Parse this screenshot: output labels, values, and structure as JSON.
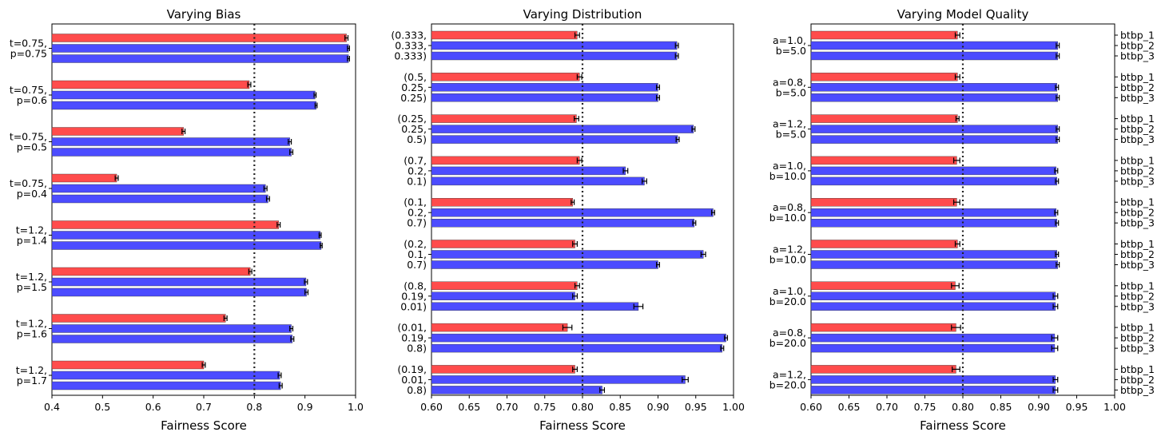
{
  "chart_data": [
    {
      "type": "bar",
      "orientation": "horizontal",
      "title": "Varying Bias",
      "xlabel": "Fairness Score",
      "ylabel": "",
      "xlim": [
        0.4,
        1.0
      ],
      "xticks": [
        "0.4",
        "0.5",
        "0.6",
        "0.7",
        "0.8",
        "0.9",
        "1.0"
      ],
      "reference_line": 0.8,
      "group_labels": [
        [
          "t=0.75,",
          "p=0.75"
        ],
        [
          "t=0.75,",
          "p=0.6"
        ],
        [
          "t=0.75,",
          "p=0.5"
        ],
        [
          "t=0.75,",
          "p=0.4"
        ],
        [
          "t=1.2,",
          "p=1.4"
        ],
        [
          "t=1.2,",
          "p=1.5"
        ],
        [
          "t=1.2,",
          "p=1.6"
        ],
        [
          "t=1.2,",
          "p=1.7"
        ]
      ],
      "right_tick_labels": [],
      "groups": [
        {
          "values": [
            0.982,
            0.986,
            0.986
          ],
          "errors": [
            0.003,
            0.002,
            0.002
          ]
        },
        {
          "values": [
            0.79,
            0.92,
            0.922
          ],
          "errors": [
            0.003,
            0.002,
            0.002
          ]
        },
        {
          "values": [
            0.66,
            0.87,
            0.873
          ],
          "errors": [
            0.003,
            0.003,
            0.003
          ]
        },
        {
          "values": [
            0.528,
            0.822,
            0.827
          ],
          "errors": [
            0.003,
            0.003,
            0.003
          ]
        },
        {
          "values": [
            0.848,
            0.93,
            0.932
          ],
          "errors": [
            0.003,
            0.002,
            0.002
          ]
        },
        {
          "values": [
            0.792,
            0.902,
            0.903
          ],
          "errors": [
            0.003,
            0.003,
            0.003
          ]
        },
        {
          "values": [
            0.743,
            0.873,
            0.875
          ],
          "errors": [
            0.003,
            0.003,
            0.003
          ]
        },
        {
          "values": [
            0.7,
            0.85,
            0.852
          ],
          "errors": [
            0.003,
            0.003,
            0.003
          ]
        }
      ]
    },
    {
      "type": "bar",
      "orientation": "horizontal",
      "title": "Varying Distribution",
      "xlabel": "Fairness Score",
      "ylabel": "",
      "xlim": [
        0.6,
        1.0
      ],
      "xticks": [
        "0.60",
        "0.65",
        "0.70",
        "0.75",
        "0.80",
        "0.85",
        "0.90",
        "0.95",
        "1.00"
      ],
      "reference_line": 0.8,
      "group_labels": [
        [
          "(0.333,",
          "0.333,",
          "0.333)"
        ],
        [
          "(0.5,",
          "0.25,",
          "0.25)"
        ],
        [
          "(0.25,",
          "0.25,",
          "0.5)"
        ],
        [
          "(0.7,",
          "0.2,",
          "0.1)"
        ],
        [
          "(0.1,",
          "0.2,",
          "0.7)"
        ],
        [
          "(0.2,",
          "0.1,",
          "0.7)"
        ],
        [
          "(0.8,",
          "0.19,",
          "0.01)"
        ],
        [
          "(0.01,",
          "0.19,",
          "0.8)"
        ],
        [
          "(0.19,",
          "0.01,",
          "0.8)"
        ]
      ],
      "right_tick_labels": [],
      "groups": [
        {
          "values": [
            0.793,
            0.925,
            0.925
          ],
          "errors": [
            0.003,
            0.002,
            0.002
          ]
        },
        {
          "values": [
            0.796,
            0.9,
            0.9
          ],
          "errors": [
            0.003,
            0.002,
            0.002
          ]
        },
        {
          "values": [
            0.792,
            0.947,
            0.926
          ],
          "errors": [
            0.003,
            0.002,
            0.002
          ]
        },
        {
          "values": [
            0.796,
            0.857,
            0.882
          ],
          "errors": [
            0.003,
            0.003,
            0.003
          ]
        },
        {
          "values": [
            0.787,
            0.973,
            0.948
          ],
          "errors": [
            0.002,
            0.002,
            0.002
          ]
        },
        {
          "values": [
            0.79,
            0.96,
            0.9
          ],
          "errors": [
            0.003,
            0.003,
            0.002
          ]
        },
        {
          "values": [
            0.793,
            0.79,
            0.874
          ],
          "errors": [
            0.003,
            0.003,
            0.006
          ]
        },
        {
          "values": [
            0.78,
            0.99,
            0.985
          ],
          "errors": [
            0.006,
            0.002,
            0.002
          ]
        },
        {
          "values": [
            0.79,
            0.936,
            0.826
          ],
          "errors": [
            0.003,
            0.004,
            0.003
          ]
        }
      ]
    },
    {
      "type": "bar",
      "orientation": "horizontal",
      "title": "Varying Model Quality",
      "xlabel": "Fairness Score",
      "ylabel": "",
      "xlim": [
        0.6,
        1.0
      ],
      "xticks": [
        "0.60",
        "0.65",
        "0.70",
        "0.75",
        "0.80",
        "0.85",
        "0.90",
        "0.95",
        "1.00"
      ],
      "reference_line": 0.8,
      "group_labels": [
        [
          "a=1.0,",
          "b=5.0"
        ],
        [
          "a=0.8,",
          "b=5.0"
        ],
        [
          "a=1.2,",
          "b=5.0"
        ],
        [
          "a=1.0,",
          "b=10.0"
        ],
        [
          "a=0.8,",
          "b=10.0"
        ],
        [
          "a=1.2,",
          "b=10.0"
        ],
        [
          "a=1.0,",
          "b=20.0"
        ],
        [
          "a=0.8,",
          "b=20.0"
        ],
        [
          "a=1.2,",
          "b=20.0"
        ]
      ],
      "right_tick_labels": [
        "btbp_1",
        "btbp_2",
        "btbp_3"
      ],
      "groups": [
        {
          "values": [
            0.793,
            0.925,
            0.925
          ],
          "errors": [
            0.003,
            0.002,
            0.002
          ]
        },
        {
          "values": [
            0.793,
            0.924,
            0.925
          ],
          "errors": [
            0.003,
            0.002,
            0.002
          ]
        },
        {
          "values": [
            0.793,
            0.925,
            0.925
          ],
          "errors": [
            0.002,
            0.002,
            0.002
          ]
        },
        {
          "values": [
            0.792,
            0.923,
            0.924
          ],
          "errors": [
            0.004,
            0.002,
            0.002
          ]
        },
        {
          "values": [
            0.792,
            0.923,
            0.924
          ],
          "errors": [
            0.004,
            0.002,
            0.002
          ]
        },
        {
          "values": [
            0.793,
            0.924,
            0.925
          ],
          "errors": [
            0.003,
            0.002,
            0.002
          ]
        },
        {
          "values": [
            0.79,
            0.922,
            0.922
          ],
          "errors": [
            0.005,
            0.003,
            0.003
          ]
        },
        {
          "values": [
            0.791,
            0.921,
            0.921
          ],
          "errors": [
            0.006,
            0.004,
            0.004
          ]
        },
        {
          "values": [
            0.791,
            0.922,
            0.922
          ],
          "errors": [
            0.005,
            0.003,
            0.003
          ]
        }
      ]
    }
  ],
  "colors": {
    "highlight_bar": "#ff4c4c",
    "base_bar": "#4c4cff",
    "reference_line": "#222222",
    "error_bar": "#000000"
  }
}
